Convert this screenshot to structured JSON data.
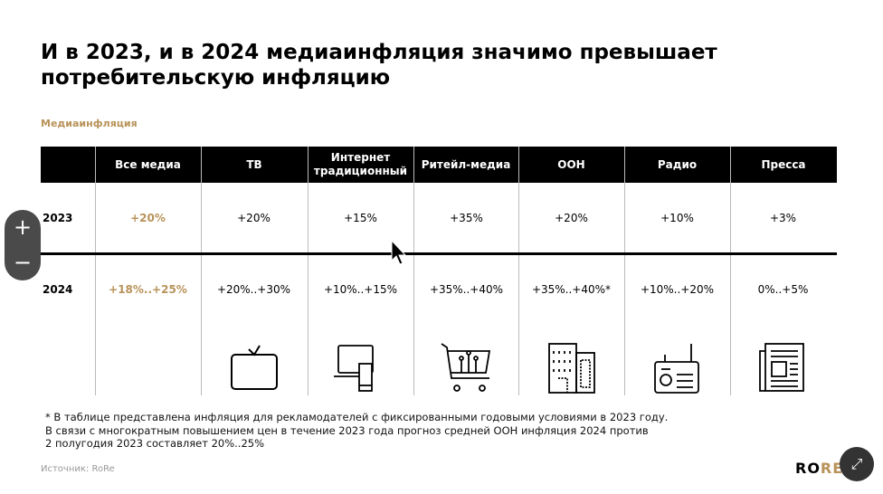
{
  "title": "И в 2023, и в 2024 медиаинфляция значимо превышает потребительскую инфляцию",
  "subtitle": "Медиаинфляция",
  "columns": [
    "Все медиа",
    "ТВ",
    "Интернет традиционный",
    "Ритейл-медиа",
    "ООН",
    "Радио",
    "Пресса"
  ],
  "rows": [
    {
      "year": "2023",
      "values": [
        "+20%",
        "+20%",
        "+15%",
        "+35%",
        "+20%",
        "+10%",
        "+3%"
      ]
    },
    {
      "year": "2024",
      "values": [
        "+18%..+25%",
        "+20%..+30%",
        "+10%..+15%",
        "+35%..+40%",
        "+35%..+40%*",
        "+10%..+20%",
        "0%..+5%"
      ]
    }
  ],
  "icons": [
    "tv-icon",
    "laptop-phone-icon",
    "shopping-cart-icon",
    "building-icon",
    "radio-icon",
    "newspaper-icon"
  ],
  "note": [
    "* В таблице представлена инфляция для рекламодателей с фиксированными годовыми условиями в 2023 году.",
    "В связи с многократным повышением цен в течение 2023 года прогноз средней ООН инфляция 2024 против",
    "2 полугодия 2023 составляет 20%..25%"
  ],
  "source": "Источник: RoRe",
  "logo": {
    "a": "RO",
    "b": "RE"
  },
  "zoom": {
    "plus": "+",
    "minus": "−"
  },
  "colors": {
    "accent": "#b8935a"
  }
}
